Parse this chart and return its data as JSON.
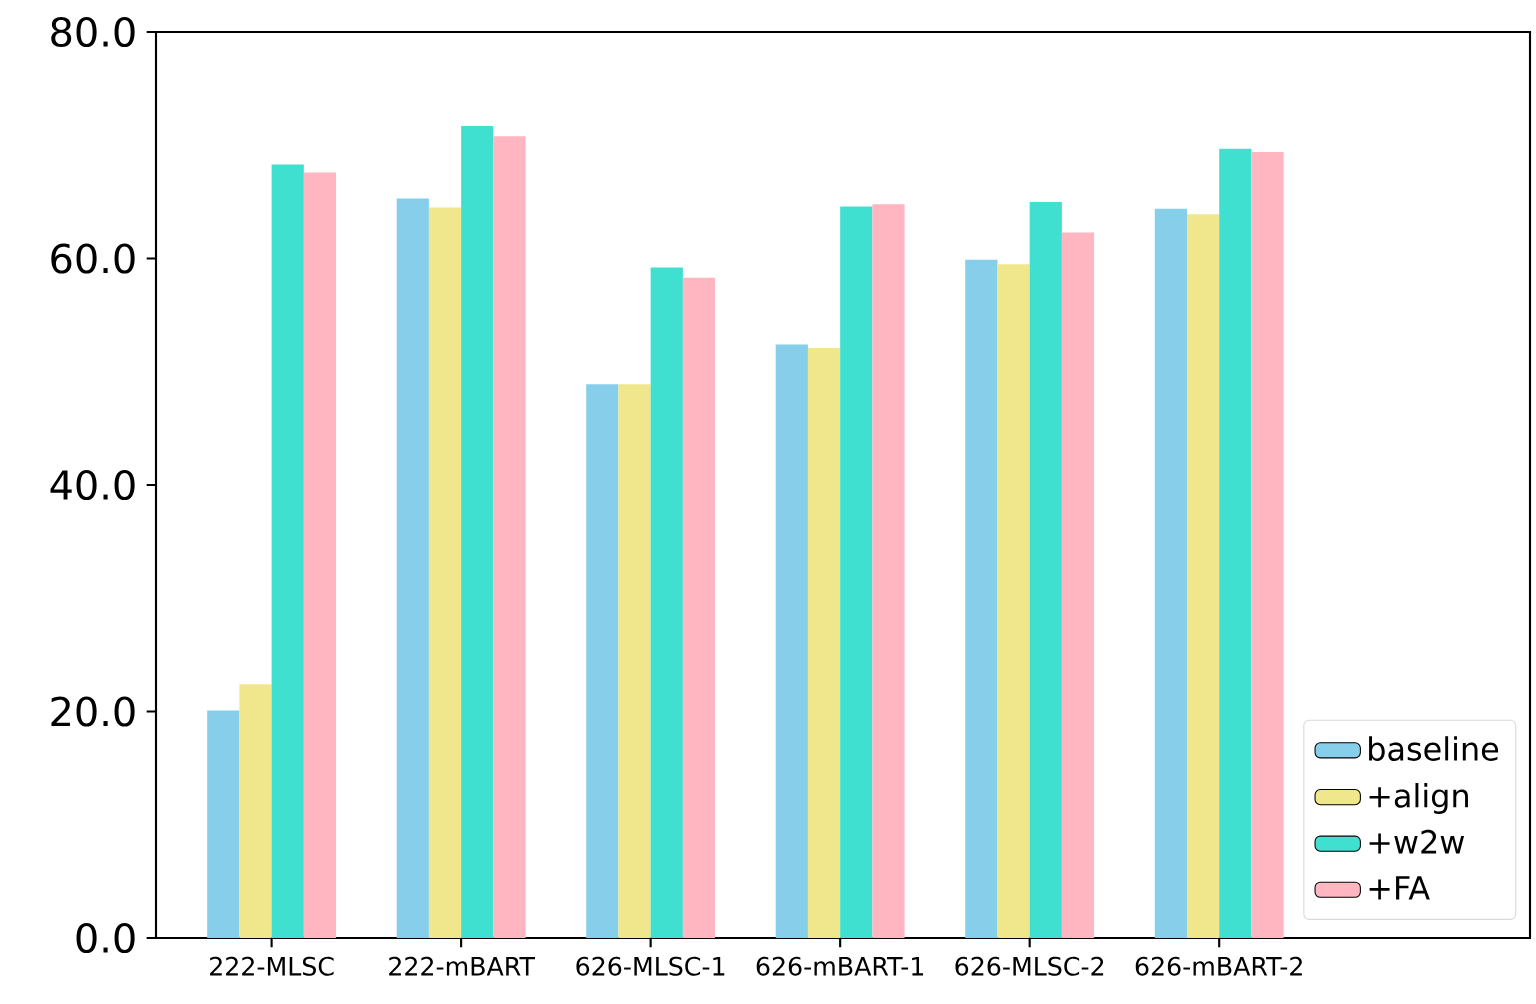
{
  "chart_data": {
    "type": "bar",
    "categories": [
      "222-MLSC",
      "222-mBART",
      "626-MLSC-1",
      "626-mBART-1",
      "626-MLSC-2",
      "626-mBART-2"
    ],
    "series": [
      {
        "name": "baseline",
        "color": "#87ceeb",
        "values": [
          20.1,
          65.3,
          48.9,
          52.4,
          59.9,
          64.4
        ]
      },
      {
        "name": "+align",
        "color": "#f0e68c",
        "values": [
          22.4,
          64.5,
          48.9,
          52.1,
          59.5,
          63.9
        ]
      },
      {
        "name": "+w2w",
        "color": "#40e0d0",
        "values": [
          68.3,
          71.7,
          59.2,
          64.6,
          65.0,
          69.7
        ]
      },
      {
        "name": "+FA",
        "color": "#ffb6c1",
        "values": [
          67.6,
          70.8,
          58.3,
          64.8,
          62.3,
          69.4
        ]
      }
    ],
    "ylim": [
      0,
      80
    ],
    "yticks": [
      {
        "value": 0,
        "label": "0.0"
      },
      {
        "value": 20,
        "label": "20.0"
      },
      {
        "value": 40,
        "label": "40.0"
      },
      {
        "value": 60,
        "label": "60.0"
      },
      {
        "value": 80,
        "label": "80.0"
      }
    ],
    "legend": "bottom right",
    "grid": false
  }
}
